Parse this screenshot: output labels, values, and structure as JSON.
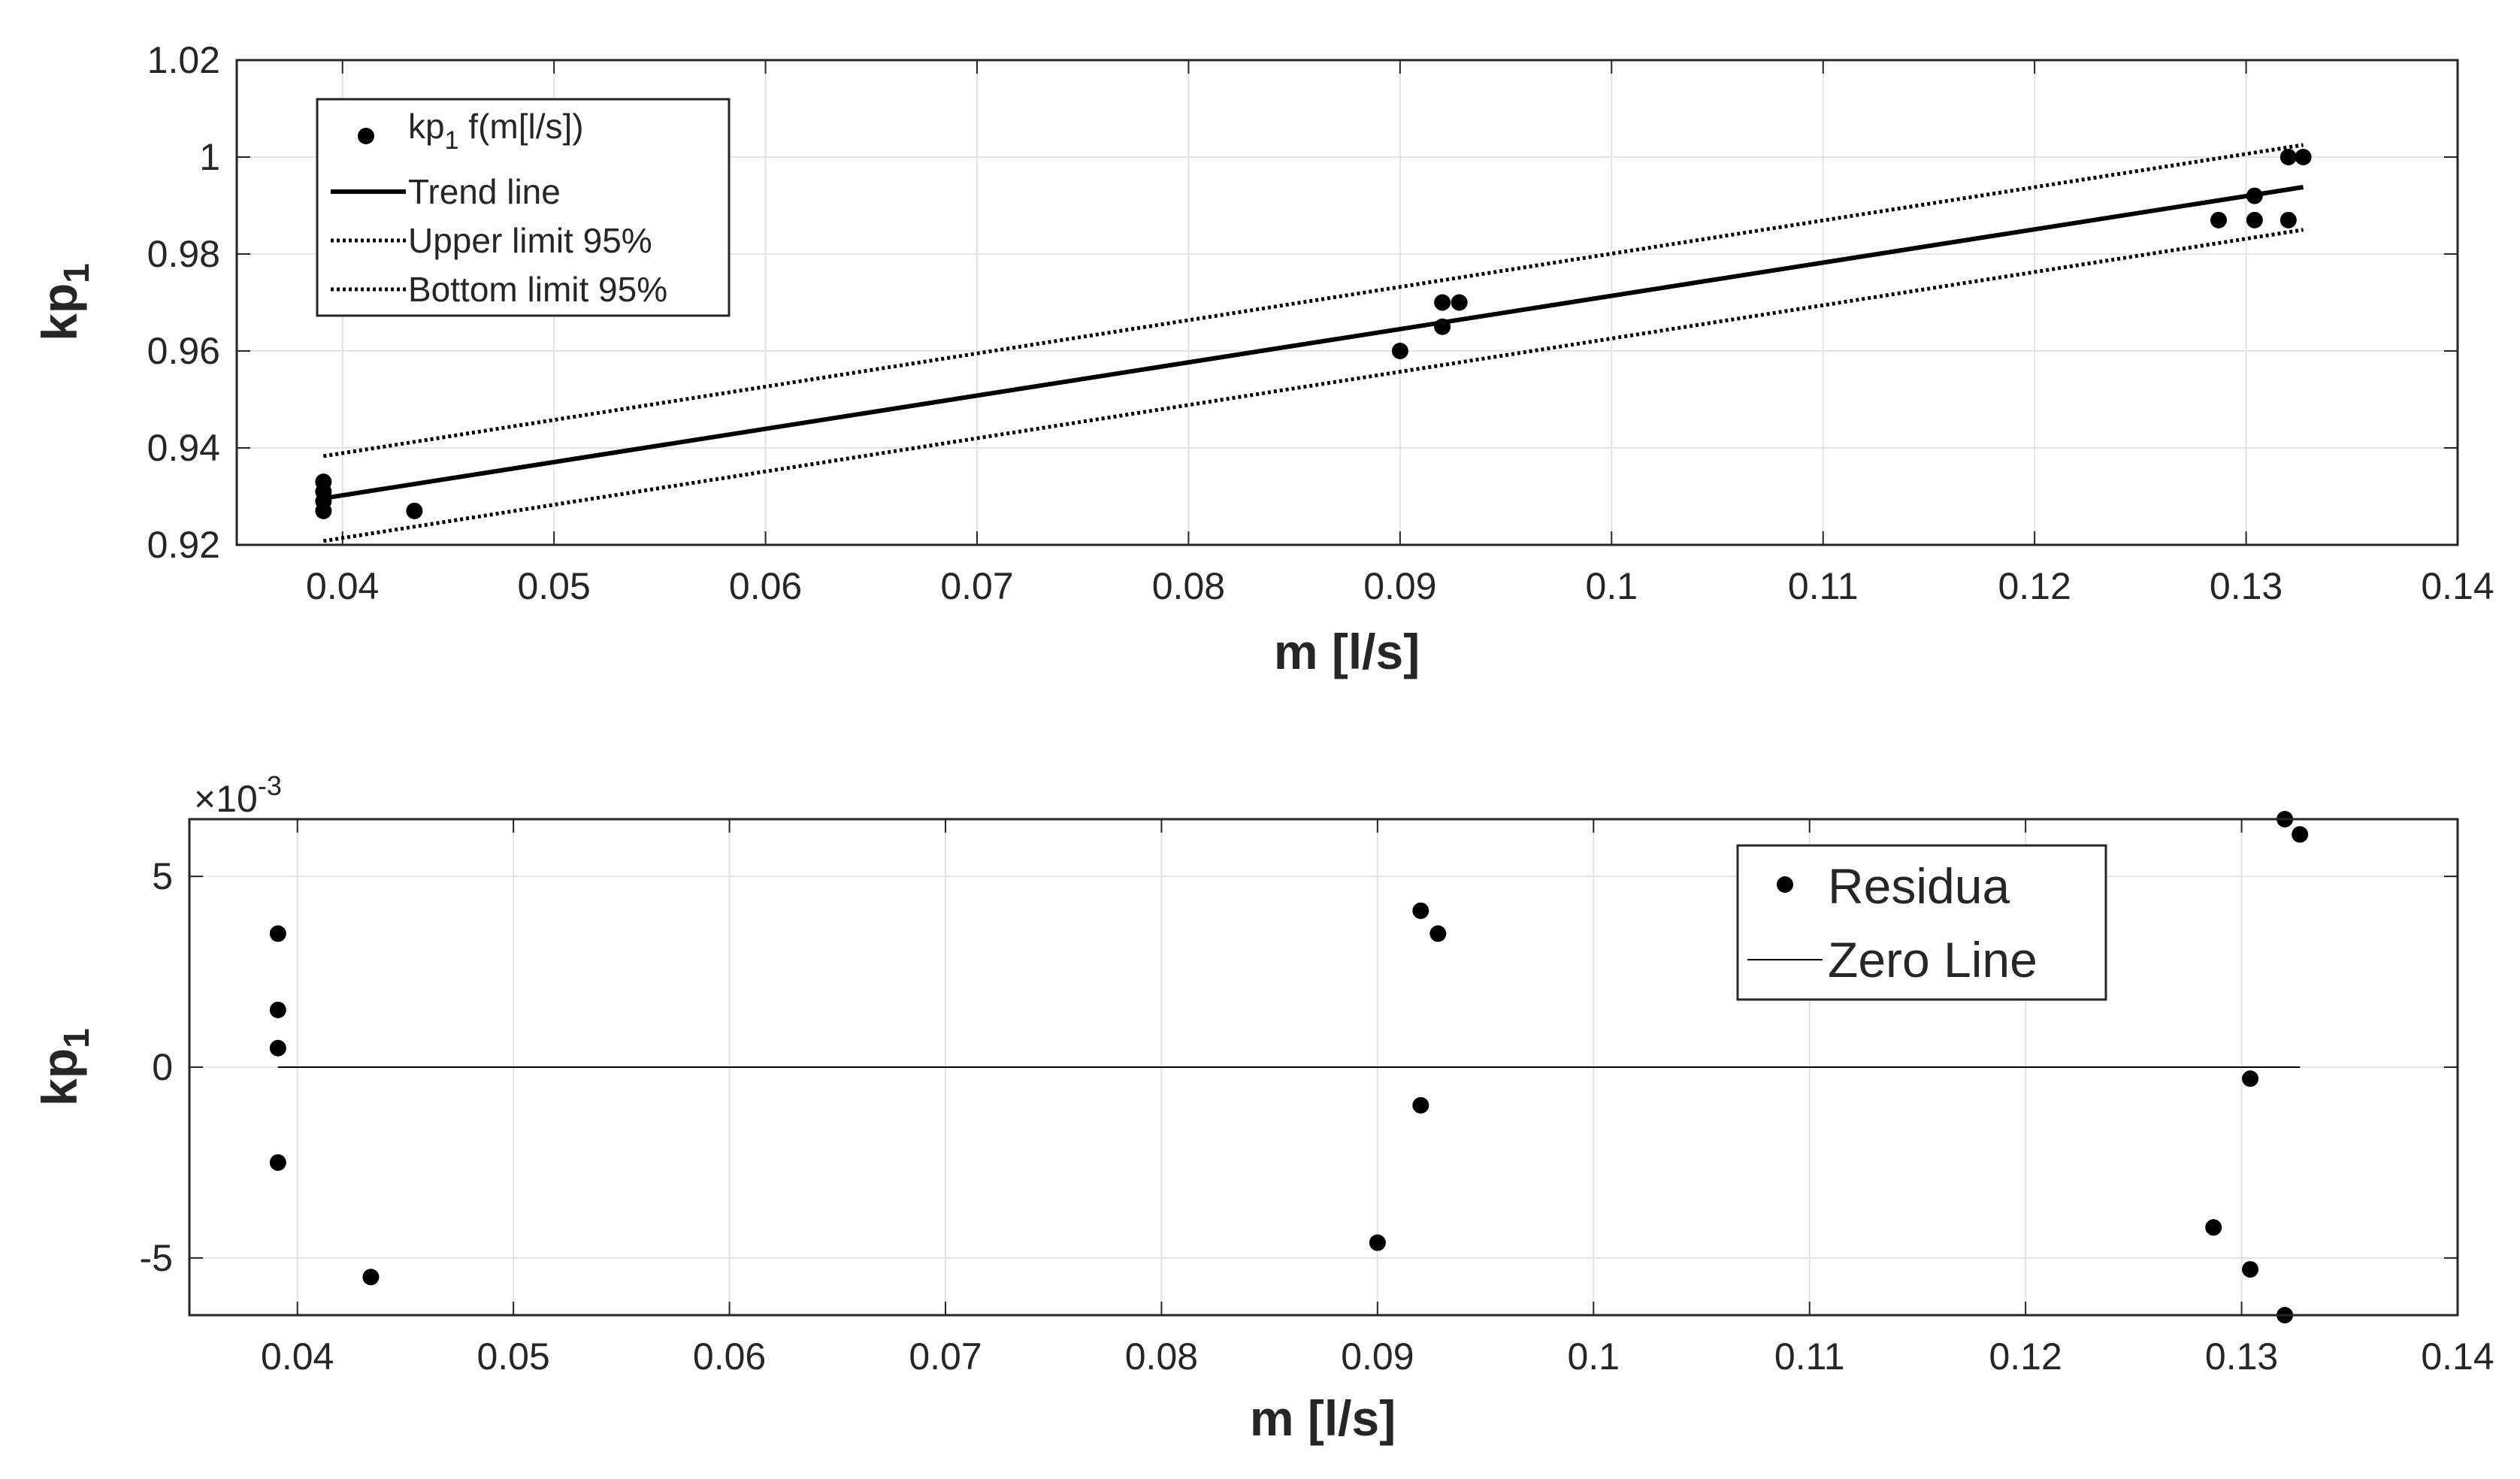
{
  "chart_data": [
    {
      "type": "scatter",
      "xlabel": "m [l/s]",
      "ylabel_main": "kp",
      "ylabel_sub": "1",
      "xlim": [
        0.035,
        0.14
      ],
      "ylim": [
        0.92,
        1.02
      ],
      "xticks": [
        0.04,
        0.05,
        0.06,
        0.07,
        0.08,
        0.09,
        0.1,
        0.11,
        0.12,
        0.13,
        0.14
      ],
      "xtick_labels": [
        "0.04",
        "0.05",
        "0.06",
        "0.07",
        "0.08",
        "0.09",
        "0.1",
        "0.11",
        "0.12",
        "0.13",
        "0.14"
      ],
      "yticks": [
        0.92,
        0.94,
        0.96,
        0.98,
        1.0,
        1.02
      ],
      "ytick_labels": [
        "0.92",
        "0.94",
        "0.96",
        "0.98",
        "1",
        "1.02"
      ],
      "grid": true,
      "legend_position": "top-left",
      "series": [
        {
          "name": "kp1 f(m[l/s])",
          "legend_main": "kp",
          "legend_sub": "1",
          "legend_rest": " f(m[l/s])",
          "kind": "points",
          "points": [
            [
              0.0391,
              0.927
            ],
            [
              0.0391,
              0.929
            ],
            [
              0.0391,
              0.931
            ],
            [
              0.0391,
              0.933
            ],
            [
              0.0434,
              0.927
            ],
            [
              0.09,
              0.96
            ],
            [
              0.092,
              0.965
            ],
            [
              0.092,
              0.97
            ],
            [
              0.0928,
              0.97
            ],
            [
              0.1287,
              0.987
            ],
            [
              0.1304,
              0.987
            ],
            [
              0.1304,
              0.992
            ],
            [
              0.132,
              0.987
            ],
            [
              0.132,
              1.0
            ],
            [
              0.1327,
              1.0
            ]
          ]
        },
        {
          "name": "Trend line",
          "kind": "line",
          "style": "solid",
          "points": [
            [
              0.0391,
              0.9296
            ],
            [
              0.1327,
              0.9938
            ]
          ]
        },
        {
          "name": "Upper limit 95%",
          "kind": "line",
          "style": "dotted",
          "points": [
            [
              0.0391,
              0.9383
            ],
            [
              0.1327,
              1.0025
            ]
          ]
        },
        {
          "name": "Bottom limit 95%",
          "kind": "line",
          "style": "dotted",
          "points": [
            [
              0.0391,
              0.9208
            ],
            [
              0.1327,
              0.985
            ]
          ]
        }
      ]
    },
    {
      "type": "scatter",
      "xlabel": "m [l/s]",
      "ylabel_main": "kp",
      "ylabel_sub": "1",
      "xlim": [
        0.035,
        0.14
      ],
      "ylim": [
        -0.0065,
        0.0065
      ],
      "exponent_label_prefix": "×10",
      "exponent_label_power": "-3",
      "xticks": [
        0.04,
        0.05,
        0.06,
        0.07,
        0.08,
        0.09,
        0.1,
        0.11,
        0.12,
        0.13,
        0.14
      ],
      "xtick_labels": [
        "0.04",
        "0.05",
        "0.06",
        "0.07",
        "0.08",
        "0.09",
        "0.1",
        "0.11",
        "0.12",
        "0.13",
        "0.14"
      ],
      "yticks": [
        -0.005,
        0,
        0.005
      ],
      "ytick_labels": [
        "-5",
        "0",
        "5"
      ],
      "grid": true,
      "legend_position": "top-right",
      "series": [
        {
          "name": "Residua",
          "kind": "points",
          "points": [
            [
              0.0391,
              0.0035
            ],
            [
              0.0391,
              0.0015
            ],
            [
              0.0391,
              0.0005
            ],
            [
              0.0391,
              -0.0025
            ],
            [
              0.0434,
              -0.0055
            ],
            [
              0.09,
              -0.0046
            ],
            [
              0.092,
              0.0041
            ],
            [
              0.092,
              -0.001
            ],
            [
              0.0928,
              0.0035
            ],
            [
              0.1287,
              -0.0042
            ],
            [
              0.1304,
              -0.0003
            ],
            [
              0.1304,
              -0.0053
            ],
            [
              0.132,
              0.0065
            ],
            [
              0.132,
              -0.0065
            ],
            [
              0.1327,
              0.0061
            ]
          ]
        },
        {
          "name": "Zero Line",
          "kind": "line",
          "style": "thin",
          "points": [
            [
              0.0391,
              0
            ],
            [
              0.1327,
              0
            ]
          ]
        }
      ]
    }
  ]
}
